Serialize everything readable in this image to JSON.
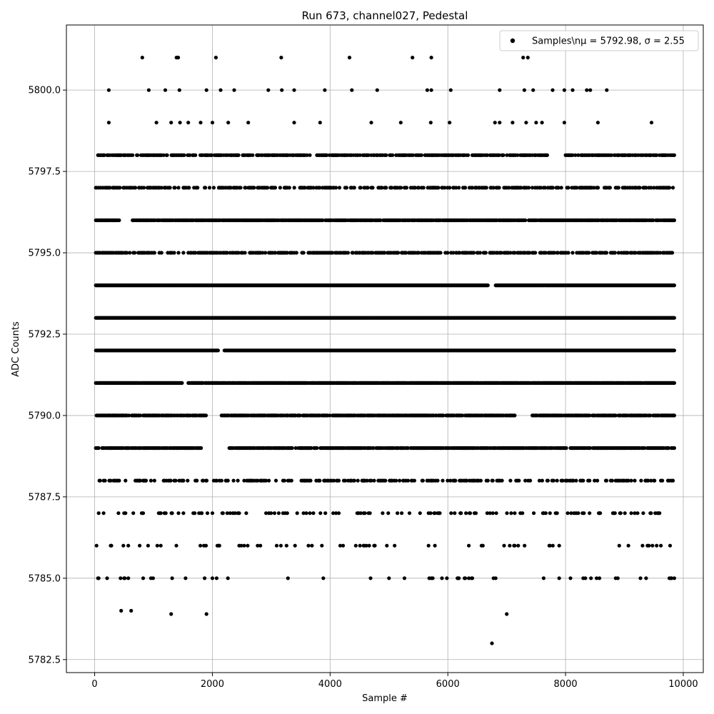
{
  "chart_data": {
    "type": "scatter",
    "title": "Run 673, channel027, Pedestal",
    "xlabel": "Sample #",
    "ylabel": "ADC Counts",
    "xlim": [
      -480,
      10340
    ],
    "ylim": [
      5782.1,
      5802.0
    ],
    "x_ticks": [
      0,
      2000,
      4000,
      6000,
      8000,
      10000
    ],
    "x_tick_labels": [
      "0",
      "2000",
      "4000",
      "6000",
      "8000",
      "10000"
    ],
    "y_ticks": [
      5782.5,
      5785.0,
      5787.5,
      5790.0,
      5792.5,
      5795.0,
      5797.5,
      5800.0
    ],
    "y_tick_labels": [
      "5782.5",
      "5785.0",
      "5787.5",
      "5790.0",
      "5792.5",
      "5795.0",
      "5797.5",
      "5800.0"
    ],
    "grid": true,
    "legend_position": "upper right",
    "marker_color": "#000000",
    "series": [
      {
        "name": "Samples\\nμ = 5792.98, σ = 2.55",
        "points": [
          [
            810,
            5801
          ],
          [
            1390,
            5801
          ],
          [
            1420,
            5801
          ],
          [
            2060,
            5801
          ],
          [
            3170,
            5801
          ],
          [
            4330,
            5801
          ],
          [
            5400,
            5801
          ],
          [
            5720,
            5801
          ],
          [
            7280,
            5801
          ],
          [
            7360,
            5801
          ],
          [
            240,
            5800
          ],
          [
            920,
            5800
          ],
          [
            1200,
            5800
          ],
          [
            1440,
            5800
          ],
          [
            1900,
            5800
          ],
          [
            2140,
            5800
          ],
          [
            2370,
            5800
          ],
          [
            2950,
            5800
          ],
          [
            3180,
            5800
          ],
          [
            3390,
            5800
          ],
          [
            3910,
            5800
          ],
          [
            4370,
            5800
          ],
          [
            4800,
            5800
          ],
          [
            5650,
            5800
          ],
          [
            5720,
            5800
          ],
          [
            6050,
            5800
          ],
          [
            6880,
            5800
          ],
          [
            7300,
            5800
          ],
          [
            7450,
            5800
          ],
          [
            7780,
            5800
          ],
          [
            7980,
            5800
          ],
          [
            8120,
            5800
          ],
          [
            8360,
            5800
          ],
          [
            8420,
            5800
          ],
          [
            8700,
            5800
          ],
          [
            240,
            5799
          ],
          [
            1050,
            5799
          ],
          [
            1300,
            5799
          ],
          [
            1450,
            5799
          ],
          [
            1590,
            5799
          ],
          [
            1800,
            5799
          ],
          [
            2000,
            5799
          ],
          [
            2270,
            5799
          ],
          [
            2610,
            5799
          ],
          [
            3390,
            5799
          ],
          [
            3830,
            5799
          ],
          [
            4700,
            5799
          ],
          [
            5200,
            5799
          ],
          [
            5710,
            5799
          ],
          [
            6030,
            5799
          ],
          [
            6800,
            5799
          ],
          [
            6880,
            5799
          ],
          [
            7100,
            5799
          ],
          [
            7330,
            5799
          ],
          [
            7500,
            5799
          ],
          [
            7600,
            5799
          ],
          [
            7980,
            5799
          ],
          [
            8550,
            5799
          ],
          [
            9460,
            5799
          ],
          [
            1300,
            5783.9
          ],
          [
            1900,
            5783.9
          ],
          [
            7000,
            5783.9
          ],
          [
            450,
            5784
          ],
          [
            620,
            5784
          ],
          [
            6750,
            5783
          ]
        ]
      }
    ],
    "dense_bands": [
      {
        "y": 5798,
        "density": 0.55,
        "gaps": [
          [
            7700,
            7990
          ]
        ]
      },
      {
        "y": 5797,
        "density": 0.4,
        "gaps": []
      },
      {
        "y": 5796,
        "density": 0.8,
        "gaps": [
          [
            420,
            640
          ]
        ]
      },
      {
        "y": 5795,
        "density": 0.5,
        "gaps": []
      },
      {
        "y": 5794,
        "density": 1.0,
        "gaps": [
          [
            6690,
            6800
          ]
        ]
      },
      {
        "y": 5793,
        "density": 1.0,
        "gaps": []
      },
      {
        "y": 5792,
        "density": 1.0,
        "gaps": [
          [
            2100,
            2200
          ]
        ]
      },
      {
        "y": 5791,
        "density": 0.95,
        "gaps": [
          [
            1490,
            1590
          ]
        ]
      },
      {
        "y": 5790,
        "density": 0.75,
        "gaps": [
          [
            1900,
            2120
          ],
          [
            7150,
            7420
          ]
        ]
      },
      {
        "y": 5789,
        "density": 0.7,
        "gaps": [
          [
            1830,
            2270
          ]
        ]
      },
      {
        "y": 5788,
        "density": 0.3,
        "gaps": []
      },
      {
        "y": 5787,
        "density": 0.15,
        "gaps": []
      },
      {
        "y": 5786,
        "density": 0.07,
        "gaps": []
      },
      {
        "y": 5785,
        "density": 0.05,
        "gaps": []
      }
    ],
    "x_range_data": [
      20,
      9850
    ]
  }
}
